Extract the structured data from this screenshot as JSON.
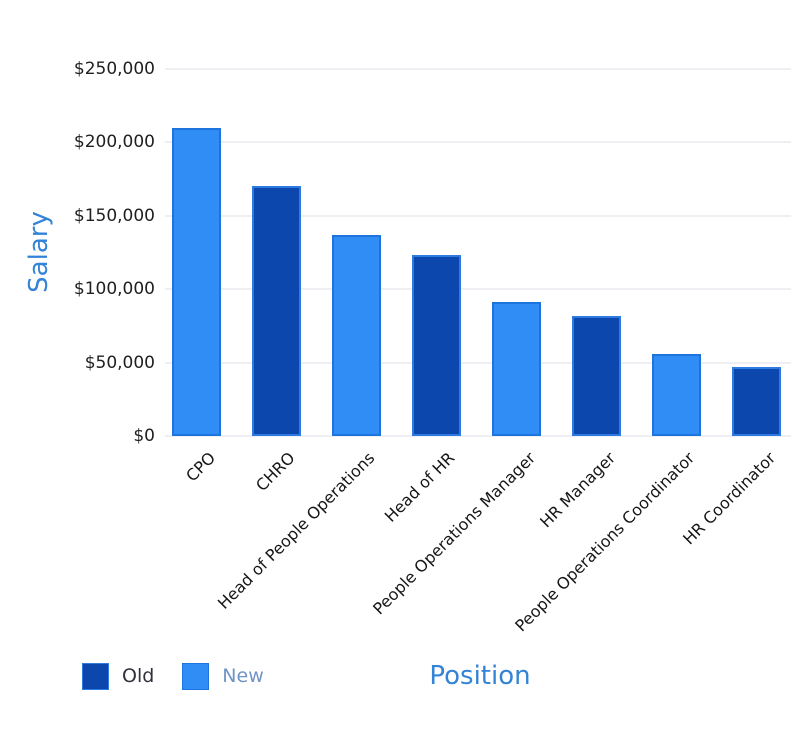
{
  "chart_data": {
    "type": "bar",
    "title": "",
    "xlabel": "Position",
    "ylabel": "Salary",
    "ylim": [
      0,
      250000
    ],
    "grid": true,
    "legend_position": "bottom-left",
    "y_ticks": [
      {
        "value": 0,
        "label": "$0"
      },
      {
        "value": 50000,
        "label": "$50,000"
      },
      {
        "value": 100000,
        "label": "$100,000"
      },
      {
        "value": 150000,
        "label": "$150,000"
      },
      {
        "value": 200000,
        "label": "$200,000"
      },
      {
        "value": 250000,
        "label": "$250,000"
      }
    ],
    "categories": [
      "CPO",
      "CHRO",
      "Head of People Operations",
      "Head of HR",
      "People Operations Manager",
      "HR Manager",
      "People Operations Coordinator",
      "HR Coordinator"
    ],
    "bars": [
      {
        "category": "CPO",
        "value": 210000,
        "series": "New"
      },
      {
        "category": "CHRO",
        "value": 170000,
        "series": "Old"
      },
      {
        "category": "Head of People Operations",
        "value": 137000,
        "series": "New"
      },
      {
        "category": "Head of HR",
        "value": 123000,
        "series": "Old"
      },
      {
        "category": "People Operations Manager",
        "value": 91000,
        "series": "New"
      },
      {
        "category": "HR Manager",
        "value": 82000,
        "series": "Old"
      },
      {
        "category": "People Operations Coordinator",
        "value": 56000,
        "series": "New"
      },
      {
        "category": "HR Coordinator",
        "value": 47000,
        "series": "Old"
      }
    ],
    "series": [
      {
        "name": "Old",
        "fill": "#0c47ad",
        "border": "#2d7be0"
      },
      {
        "name": "New",
        "fill": "#2f8df5",
        "border": "#1d74dd"
      }
    ]
  },
  "legend": {
    "items": [
      {
        "label": "Old",
        "series": "Old"
      },
      {
        "label": "New",
        "series": "New"
      }
    ],
    "label_colors": {
      "Old": "#30303f",
      "New": "#7294c4"
    }
  },
  "styles": {
    "axis_title_color": "#3383d6",
    "y_tick_label_color": "#1f1f1f",
    "x_tick_label_color": "#161616",
    "grid_color": "#efeff3",
    "background": "#ffffff"
  }
}
